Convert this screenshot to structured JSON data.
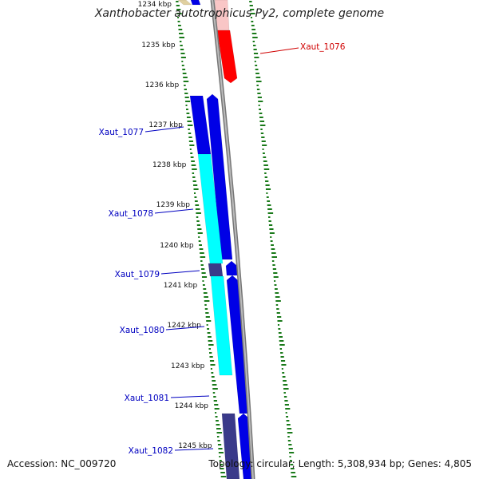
{
  "header": {
    "title": "Xanthobacter autotrophicus Py2, complete genome"
  },
  "footer": {
    "accession": "Accession: NC_009720",
    "topology": "Topology: circular; Length: 5,308,934 bp; Genes: 4,805"
  },
  "colors": {
    "gene_forward": "#0000e6",
    "gene_reverse_highlight": "#ff0000",
    "gene_cyan": "#00ffff",
    "gene_slate": "#3a3a8a",
    "backbone": "#888888",
    "gc_ticks": "#1a7a1a",
    "label_blue": "#0000c0",
    "label_red": "#d00000"
  },
  "kbp_ticks": [
    "1234 kbp",
    "1235 kbp",
    "1236 kbp",
    "1237 kbp",
    "1238 kbp",
    "1239 kbp",
    "1240 kbp",
    "1241 kbp",
    "1242 kbp",
    "1243 kbp",
    "1244 kbp",
    "1245 kbp"
  ],
  "gene_labels": [
    {
      "name": "Xaut_1076",
      "color": "red"
    },
    {
      "name": "Xaut_1077",
      "color": "blue"
    },
    {
      "name": "Xaut_1078",
      "color": "blue"
    },
    {
      "name": "Xaut_1079",
      "color": "blue"
    },
    {
      "name": "Xaut_1080",
      "color": "blue"
    },
    {
      "name": "Xaut_1081",
      "color": "blue"
    },
    {
      "name": "Xaut_1082",
      "color": "blue"
    }
  ]
}
